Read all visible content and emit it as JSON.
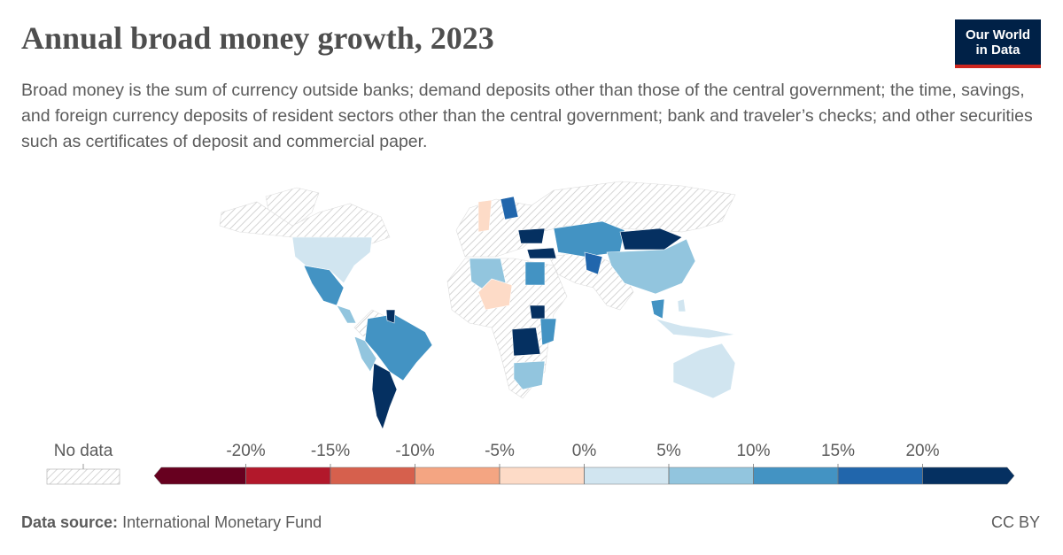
{
  "chart_data": {
    "type": "map",
    "title": "Annual broad money growth, 2023",
    "subtitle": "Broad money is the sum of currency outside banks; demand deposits other than those of the central government; the time, savings, and foreign currency deposits of resident sectors other than the central government; bank and traveler’s checks; and other securities such as certificates of deposit and commercial paper.",
    "logo": [
      "Our World",
      "in Data"
    ],
    "no_data_label": "No data",
    "xlim": [
      -25,
      25
    ],
    "xticks": [
      {
        "value": -20,
        "label": "-20%"
      },
      {
        "value": -15,
        "label": "-15%"
      },
      {
        "value": -10,
        "label": "-10%"
      },
      {
        "value": -5,
        "label": "-5%"
      },
      {
        "value": 0,
        "label": "0%"
      },
      {
        "value": 5,
        "label": "5%"
      },
      {
        "value": 10,
        "label": "10%"
      },
      {
        "value": 15,
        "label": "15%"
      },
      {
        "value": 20,
        "label": "20%"
      }
    ],
    "colors": [
      "#67001f",
      "#b2182b",
      "#d6604d",
      "#f4a582",
      "#fddbc7",
      "#d1e5f0",
      "#92c5de",
      "#4393c3",
      "#2166ac",
      "#053061"
    ],
    "source_label": "Data source:",
    "source": "International Monetary Fund",
    "license": "CC BY"
  }
}
